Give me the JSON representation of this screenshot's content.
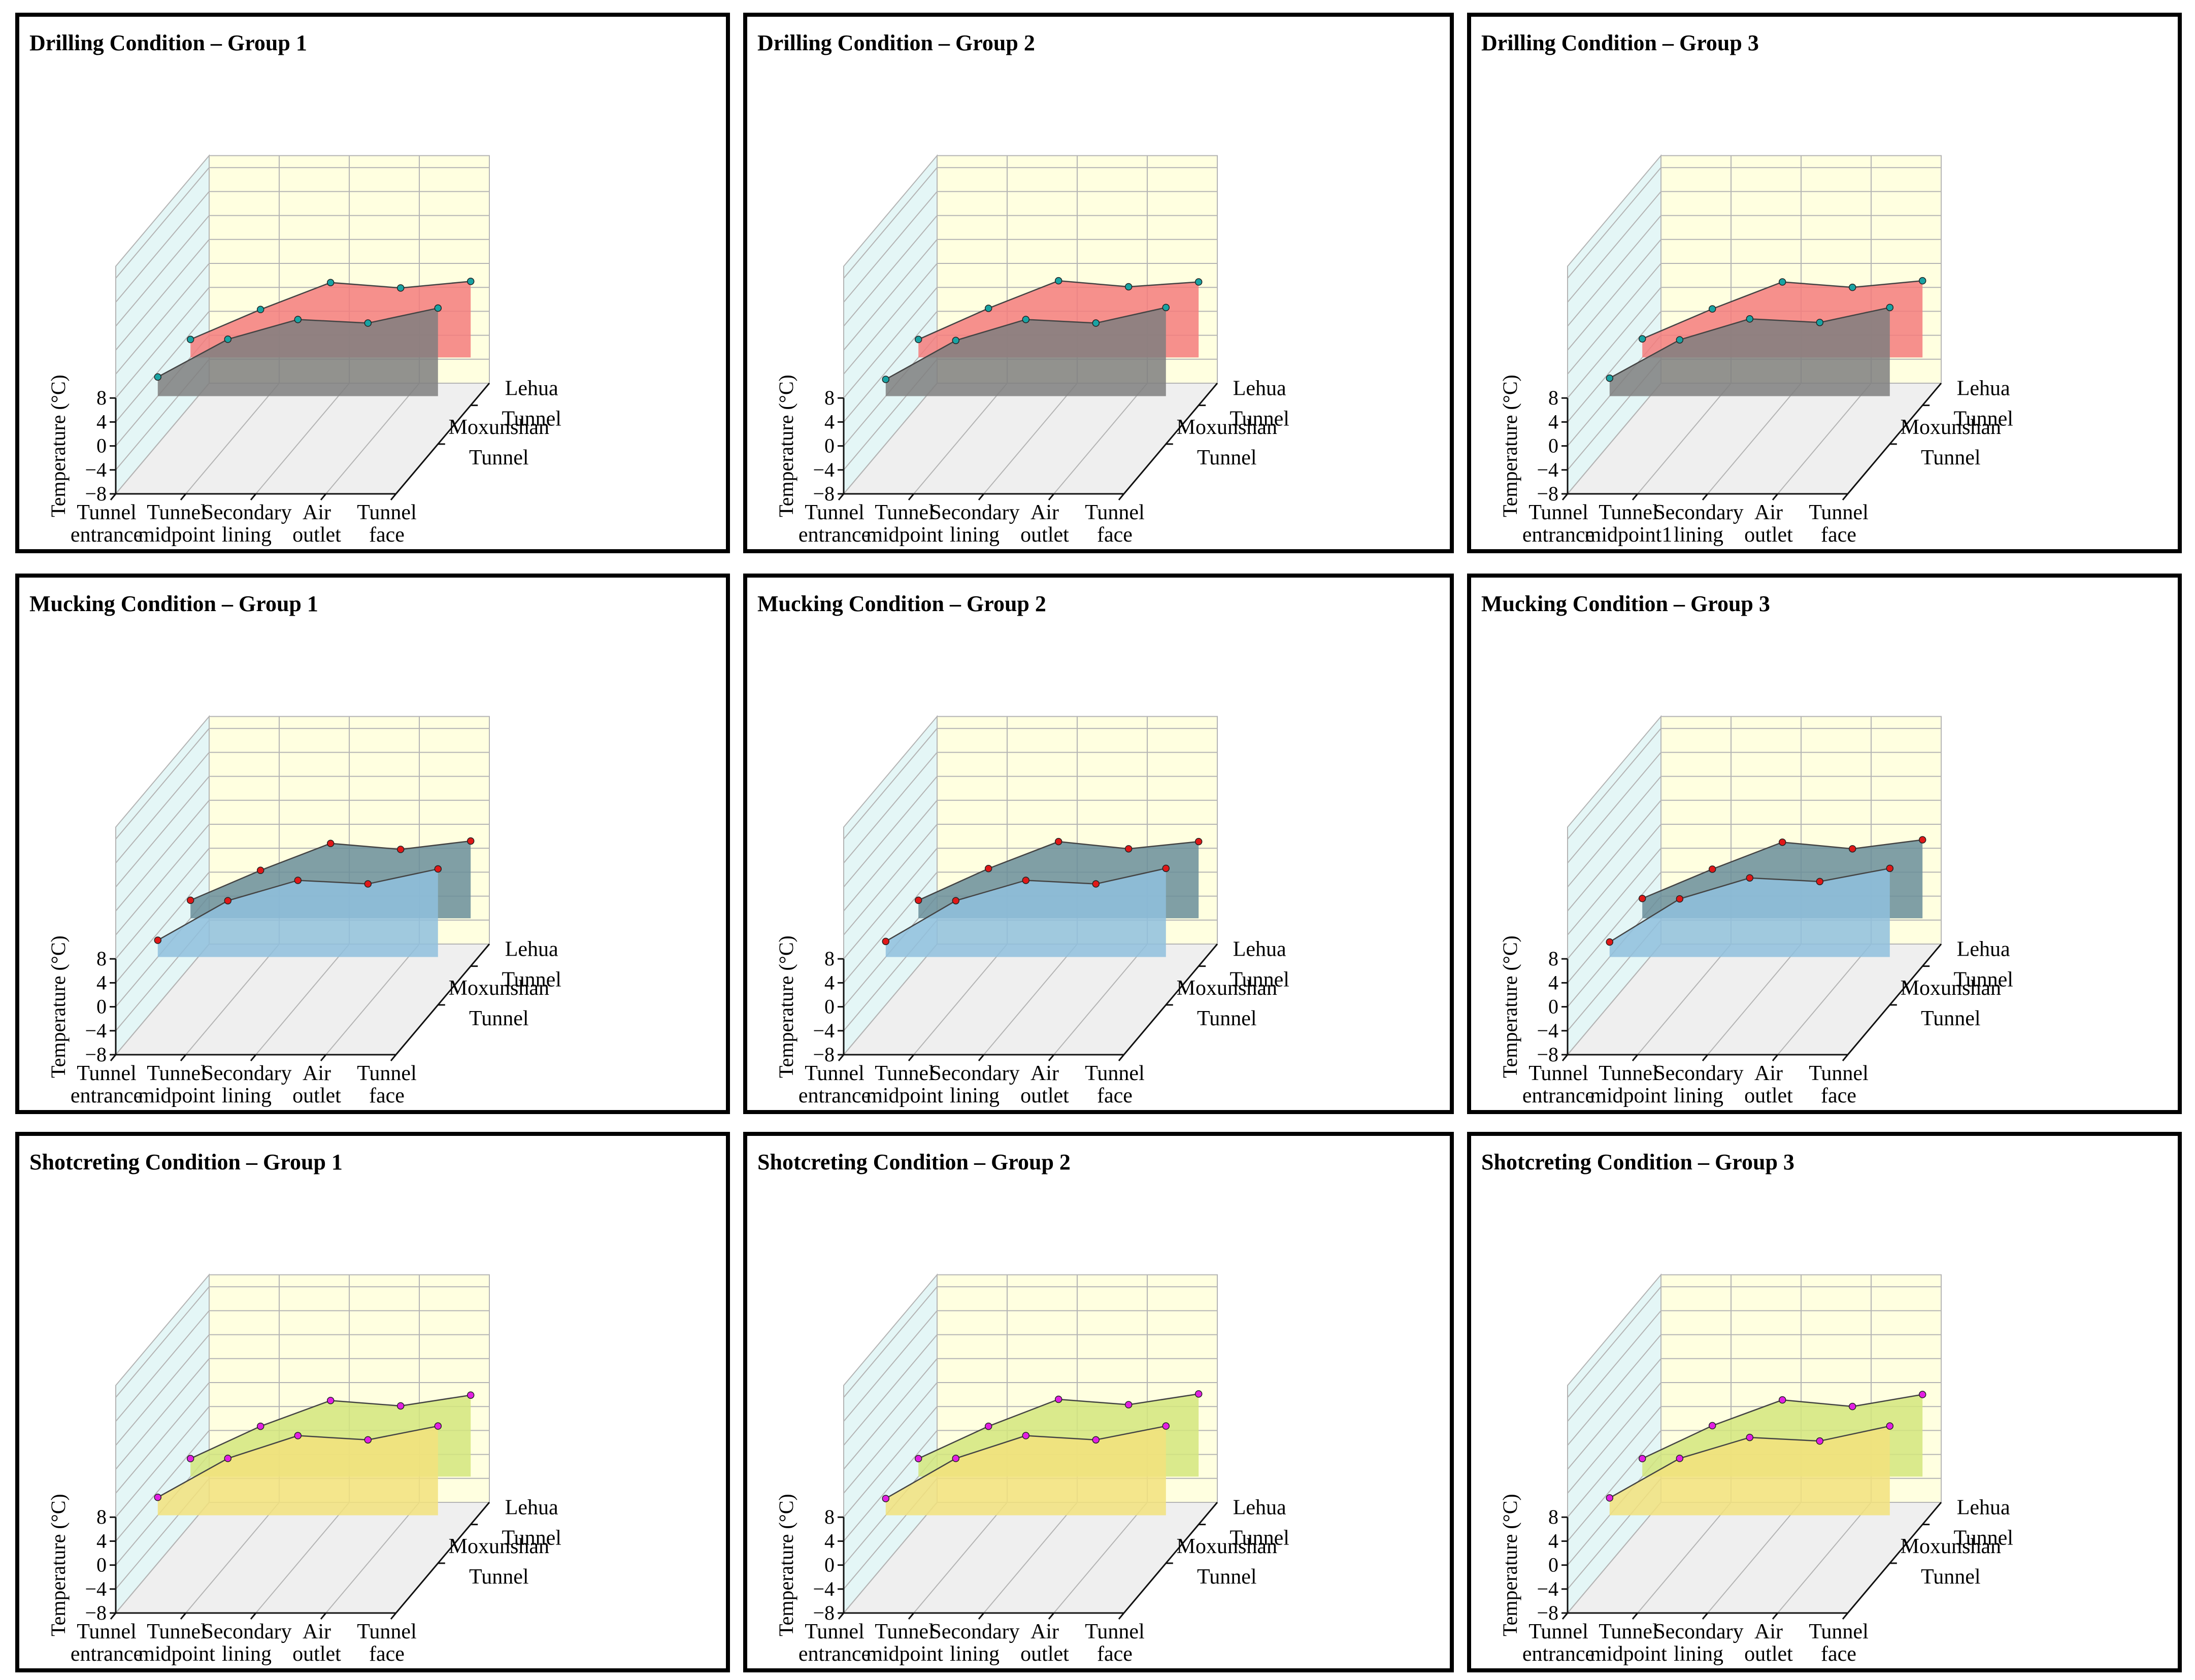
{
  "colors": {
    "back_wall": "#ffffe0",
    "side_wall": "#e4f6f6",
    "floor": "#efefef",
    "grid": "#b4b4b4",
    "axis": "#111111",
    "series_line": "#444444",
    "marker_outline": "#222222"
  },
  "chart_data": [
    {
      "type": "3d-area",
      "title": "Drilling Condition – Group 1",
      "x_categories": [
        [
          "Tunnel",
          "entrance"
        ],
        [
          "Tunnel",
          "midpoint"
        ],
        [
          "Secondary",
          "lining"
        ],
        [
          "Air",
          "outlet"
        ],
        [
          "Tunnel",
          "face"
        ]
      ],
      "ylabel": "Temperature (°C)",
      "ylim": [
        -8,
        8
      ],
      "yticks": [
        "−8",
        "−4",
        "0",
        "4",
        "8"
      ],
      "depth_categories": [
        [
          "Moxunshan",
          "Tunnel"
        ],
        [
          "Lehua",
          "Tunnel"
        ]
      ],
      "series": [
        {
          "name": "Moxunshan Tunnel",
          "values": [
            3.2,
            9.5,
            12.8,
            12.2,
            14.7
          ],
          "fill": "#7f7f7f"
        },
        {
          "name": "Lehua Tunnel",
          "values": [
            3.0,
            8.0,
            12.5,
            11.6,
            12.7
          ],
          "fill": "#f47c7c"
        }
      ],
      "marker_color": "#19a3a3"
    },
    {
      "type": "3d-area",
      "title": "Drilling Condition – Group 2",
      "x_categories": [
        [
          "Tunnel",
          "entrance"
        ],
        [
          "Tunnel",
          "midpoint"
        ],
        [
          "Secondary",
          "lining"
        ],
        [
          "Air",
          "outlet"
        ],
        [
          "Tunnel",
          "face"
        ]
      ],
      "ylabel": "Temperature (°C)",
      "ylim": [
        -8,
        8
      ],
      "yticks": [
        "−8",
        "−4",
        "0",
        "4",
        "8"
      ],
      "depth_categories": [
        [
          "Moxunshan",
          "Tunnel"
        ],
        [
          "Lehua",
          "Tunnel"
        ]
      ],
      "series": [
        {
          "name": "Moxunshan Tunnel",
          "values": [
            2.8,
            9.3,
            12.8,
            12.2,
            14.8
          ],
          "fill": "#7f7f7f"
        },
        {
          "name": "Lehua Tunnel",
          "values": [
            3.0,
            8.2,
            12.8,
            11.8,
            12.6
          ],
          "fill": "#f47c7c"
        }
      ],
      "marker_color": "#19a3a3"
    },
    {
      "type": "3d-area",
      "title": "Drilling Condition – Group 3",
      "x_categories": [
        [
          "Tunnel",
          "entrance"
        ],
        [
          "Tunnel",
          "midpoint1"
        ],
        [
          "Secondary",
          "lining"
        ],
        [
          "Air",
          "outlet"
        ],
        [
          "Tunnel",
          "face"
        ]
      ],
      "ylabel": "Temperature (°C)",
      "ylim": [
        -8,
        8
      ],
      "yticks": [
        "−8",
        "−4",
        "0",
        "4",
        "8"
      ],
      "depth_categories": [
        [
          "Moxunshan",
          "Tunnel"
        ],
        [
          "Lehua",
          "Tunnel"
        ]
      ],
      "series": [
        {
          "name": "Moxunshan Tunnel",
          "values": [
            3.0,
            9.4,
            12.9,
            12.3,
            14.8
          ],
          "fill": "#7f7f7f"
        },
        {
          "name": "Lehua Tunnel",
          "values": [
            3.1,
            8.1,
            12.6,
            11.7,
            12.8
          ],
          "fill": "#f47c7c"
        }
      ],
      "marker_color": "#19a3a3"
    },
    {
      "type": "3d-area",
      "title": "Mucking Condition – Group 1",
      "x_categories": [
        [
          "Tunnel",
          "entrance"
        ],
        [
          "Tunnel",
          "midpoint"
        ],
        [
          "Secondary",
          "lining"
        ],
        [
          "Air",
          "outlet"
        ],
        [
          "Tunnel",
          "face"
        ]
      ],
      "ylabel": "Temperature (°C)",
      "ylim": [
        -8,
        8
      ],
      "yticks": [
        "−8",
        "−4",
        "0",
        "4",
        "8"
      ],
      "depth_categories": [
        [
          "Moxunshan",
          "Tunnel"
        ],
        [
          "Lehua",
          "Tunnel"
        ]
      ],
      "series": [
        {
          "name": "Moxunshan Tunnel",
          "values": [
            2.8,
            9.4,
            12.8,
            12.2,
            14.7
          ],
          "fill": "#8fc0dd"
        },
        {
          "name": "Lehua Tunnel",
          "values": [
            3.0,
            8.0,
            12.5,
            11.5,
            12.9
          ],
          "fill": "#6a8e9a"
        }
      ],
      "marker_color": "#e01818"
    },
    {
      "type": "3d-area",
      "title": "Mucking Condition – Group 2",
      "x_categories": [
        [
          "Tunnel",
          "entrance"
        ],
        [
          "Tunnel",
          "midpoint"
        ],
        [
          "Secondary",
          "lining"
        ],
        [
          "Air",
          "outlet"
        ],
        [
          "Tunnel",
          "face"
        ]
      ],
      "ylabel": "Temperature (°C)",
      "ylim": [
        -8,
        8
      ],
      "yticks": [
        "−8",
        "−4",
        "0",
        "4",
        "8"
      ],
      "depth_categories": [
        [
          "Moxunshan",
          "Tunnel"
        ],
        [
          "Lehua",
          "Tunnel"
        ]
      ],
      "series": [
        {
          "name": "Moxunshan Tunnel",
          "values": [
            2.6,
            9.4,
            12.8,
            12.2,
            14.8
          ],
          "fill": "#8fc0dd"
        },
        {
          "name": "Lehua Tunnel",
          "values": [
            3.0,
            8.3,
            12.8,
            11.6,
            12.8
          ],
          "fill": "#6a8e9a"
        }
      ],
      "marker_color": "#e01818"
    },
    {
      "type": "3d-area",
      "title": "Mucking Condition – Group 3",
      "x_categories": [
        [
          "Tunnel",
          "entrance"
        ],
        [
          "Tunnel",
          "midpoint"
        ],
        [
          "Secondary",
          "lining"
        ],
        [
          "Air",
          "outlet"
        ],
        [
          "Tunnel",
          "face"
        ]
      ],
      "ylabel": "Temperature (°C)",
      "ylim": [
        -8,
        8
      ],
      "yticks": [
        "−8",
        "−4",
        "0",
        "4",
        "8"
      ],
      "depth_categories": [
        [
          "Moxunshan",
          "Tunnel"
        ],
        [
          "Lehua",
          "Tunnel"
        ]
      ],
      "series": [
        {
          "name": "Moxunshan Tunnel",
          "values": [
            2.5,
            9.7,
            13.2,
            12.6,
            14.8
          ],
          "fill": "#8fc0dd"
        },
        {
          "name": "Lehua Tunnel",
          "values": [
            3.3,
            8.2,
            12.7,
            11.6,
            13.1
          ],
          "fill": "#6a8e9a"
        }
      ],
      "marker_color": "#e01818"
    },
    {
      "type": "3d-area",
      "title": "Shotcreting Condition – Group 1",
      "x_categories": [
        [
          "Tunnel",
          "entrance"
        ],
        [
          "Tunnel",
          "midpoint"
        ],
        [
          "Secondary",
          "lining"
        ],
        [
          "Air",
          "outlet"
        ],
        [
          "Tunnel",
          "face"
        ]
      ],
      "ylabel": "Temperature (°C)",
      "ylim": [
        -8,
        8
      ],
      "yticks": [
        "−8",
        "−4",
        "0",
        "4",
        "8"
      ],
      "depth_categories": [
        [
          "Moxunshan",
          "Tunnel"
        ],
        [
          "Lehua",
          "Tunnel"
        ]
      ],
      "series": [
        {
          "name": "Moxunshan Tunnel",
          "values": [
            3.0,
            9.5,
            13.3,
            12.6,
            14.9
          ],
          "fill": "#f2e27c"
        },
        {
          "name": "Lehua Tunnel",
          "values": [
            3.0,
            8.4,
            12.7,
            11.8,
            13.6
          ],
          "fill": "#d4e67c"
        }
      ],
      "marker_color": "#e21fe2"
    },
    {
      "type": "3d-area",
      "title": "Shotcreting Condition – Group 2",
      "x_categories": [
        [
          "Tunnel",
          "entrance"
        ],
        [
          "Tunnel",
          "midpoint"
        ],
        [
          "Secondary",
          "lining"
        ],
        [
          "Air",
          "outlet"
        ],
        [
          "Tunnel",
          "face"
        ]
      ],
      "ylabel": "Temperature (°C)",
      "ylim": [
        -8,
        8
      ],
      "yticks": [
        "−8",
        "−4",
        "0",
        "4",
        "8"
      ],
      "depth_categories": [
        [
          "Moxunshan",
          "Tunnel"
        ],
        [
          "Lehua",
          "Tunnel"
        ]
      ],
      "series": [
        {
          "name": "Moxunshan Tunnel",
          "values": [
            2.8,
            9.5,
            13.3,
            12.6,
            14.9
          ],
          "fill": "#f2e27c"
        },
        {
          "name": "Lehua Tunnel",
          "values": [
            3.0,
            8.4,
            12.9,
            12.0,
            13.8
          ],
          "fill": "#d4e67c"
        }
      ],
      "marker_color": "#e21fe2"
    },
    {
      "type": "3d-area",
      "title": "Shotcreting Condition – Group 3",
      "x_categories": [
        [
          "Tunnel",
          "entrance"
        ],
        [
          "Tunnel",
          "midpoint"
        ],
        [
          "Secondary",
          "lining"
        ],
        [
          "Air",
          "outlet"
        ],
        [
          "Tunnel",
          "face"
        ]
      ],
      "ylabel": "Temperature (°C)",
      "ylim": [
        -8,
        8
      ],
      "yticks": [
        "−8",
        "−4",
        "0",
        "4",
        "8"
      ],
      "depth_categories": [
        [
          "Moxunshan",
          "Tunnel"
        ],
        [
          "Lehua",
          "Tunnel"
        ]
      ],
      "series": [
        {
          "name": "Moxunshan Tunnel",
          "values": [
            2.9,
            9.5,
            13.0,
            12.4,
            14.9
          ],
          "fill": "#f2e27c"
        },
        {
          "name": "Lehua Tunnel",
          "values": [
            3.0,
            8.5,
            12.8,
            11.7,
            13.7
          ],
          "fill": "#d4e67c"
        }
      ],
      "marker_color": "#e21fe2"
    }
  ]
}
